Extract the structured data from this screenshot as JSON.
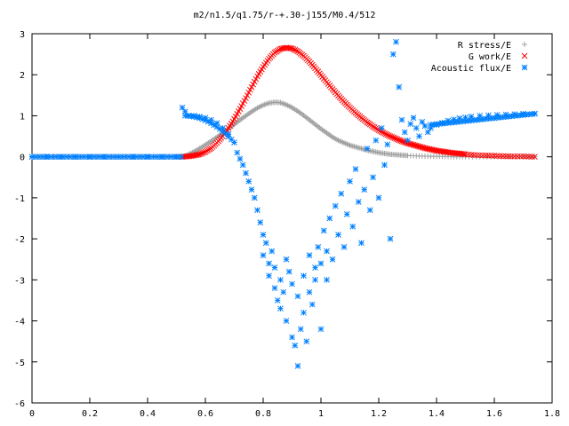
{
  "chart_data": {
    "type": "scatter",
    "title": "m2/n1.5/q1.75/r-+.30-j155/M0.4/512",
    "xlabel": "",
    "ylabel": "",
    "xlim": [
      0,
      1.8
    ],
    "ylim": [
      -6,
      3
    ],
    "xticks": [
      "0",
      "0.2",
      "0.4",
      "0.6",
      "0.8",
      "1",
      "1.2",
      "1.4",
      "1.6",
      "1.8"
    ],
    "yticks": [
      "3",
      "2",
      "1",
      "0",
      "-1",
      "-2",
      "-3",
      "-4",
      "-5",
      "-6"
    ],
    "grid": false,
    "legend_position": "top-right",
    "series": [
      {
        "name": "R stress/E",
        "marker": "plus",
        "color": "#a0a0a0",
        "x": [
          0.0,
          0.1,
          0.2,
          0.3,
          0.4,
          0.5,
          0.52,
          0.54,
          0.56,
          0.58,
          0.6,
          0.62,
          0.64,
          0.66,
          0.68,
          0.7,
          0.72,
          0.74,
          0.76,
          0.78,
          0.8,
          0.82,
          0.84,
          0.86,
          0.88,
          0.9,
          0.92,
          0.94,
          0.96,
          0.98,
          1.0,
          1.02,
          1.04,
          1.06,
          1.08,
          1.1,
          1.12,
          1.14,
          1.16,
          1.18,
          1.2,
          1.22,
          1.24,
          1.26,
          1.28,
          1.3,
          1.34,
          1.38,
          1.42,
          1.46,
          1.5,
          1.55,
          1.6,
          1.65,
          1.7,
          1.74
        ],
        "y": [
          0,
          0,
          0,
          0,
          0,
          0,
          0.0,
          0.05,
          0.12,
          0.2,
          0.29,
          0.38,
          0.48,
          0.58,
          0.68,
          0.79,
          0.9,
          1.0,
          1.1,
          1.19,
          1.26,
          1.31,
          1.33,
          1.32,
          1.27,
          1.2,
          1.11,
          1.01,
          0.9,
          0.79,
          0.68,
          0.58,
          0.48,
          0.4,
          0.34,
          0.28,
          0.24,
          0.2,
          0.16,
          0.13,
          0.1,
          0.08,
          0.06,
          0.05,
          0.04,
          0.03,
          0.02,
          0.01,
          0.01,
          0.0,
          0.0,
          0.0,
          0.0,
          0.0,
          0.0,
          0.0
        ]
      },
      {
        "name": "G work/E",
        "marker": "cross",
        "color": "#ff0000",
        "x": [
          0.52,
          0.54,
          0.56,
          0.58,
          0.6,
          0.62,
          0.64,
          0.66,
          0.68,
          0.7,
          0.72,
          0.74,
          0.76,
          0.78,
          0.8,
          0.82,
          0.84,
          0.86,
          0.88,
          0.9,
          0.92,
          0.94,
          0.96,
          0.98,
          1.0,
          1.02,
          1.04,
          1.06,
          1.08,
          1.1,
          1.12,
          1.14,
          1.16,
          1.18,
          1.2,
          1.22,
          1.24,
          1.26,
          1.28,
          1.3,
          1.32,
          1.34,
          1.36,
          1.38,
          1.4,
          1.42,
          1.44,
          1.46,
          1.48,
          1.5,
          1.54,
          1.58,
          1.62,
          1.66,
          1.7,
          1.74
        ],
        "y": [
          0.0,
          0.01,
          0.03,
          0.06,
          0.12,
          0.21,
          0.34,
          0.5,
          0.7,
          0.92,
          1.17,
          1.43,
          1.7,
          1.96,
          2.19,
          2.39,
          2.54,
          2.63,
          2.66,
          2.64,
          2.57,
          2.46,
          2.32,
          2.16,
          1.99,
          1.82,
          1.65,
          1.49,
          1.34,
          1.2,
          1.07,
          0.95,
          0.84,
          0.74,
          0.65,
          0.57,
          0.5,
          0.44,
          0.38,
          0.33,
          0.29,
          0.25,
          0.21,
          0.18,
          0.15,
          0.13,
          0.11,
          0.09,
          0.08,
          0.06,
          0.04,
          0.03,
          0.02,
          0.01,
          0.01,
          0.0
        ]
      },
      {
        "name": "Acoustic flux/E",
        "marker": "star",
        "color": "#0080ff",
        "x": [
          0.0,
          0.05,
          0.1,
          0.15,
          0.2,
          0.25,
          0.3,
          0.35,
          0.4,
          0.45,
          0.5,
          0.52,
          0.53,
          0.54,
          0.56,
          0.58,
          0.6,
          0.62,
          0.64,
          0.66,
          0.68,
          0.7,
          0.71,
          0.72,
          0.73,
          0.74,
          0.75,
          0.76,
          0.77,
          0.78,
          0.79,
          0.8,
          0.8,
          0.81,
          0.82,
          0.82,
          0.83,
          0.84,
          0.84,
          0.85,
          0.86,
          0.86,
          0.87,
          0.88,
          0.88,
          0.89,
          0.9,
          0.9,
          0.91,
          0.92,
          0.92,
          0.93,
          0.94,
          0.94,
          0.95,
          0.96,
          0.96,
          0.97,
          0.98,
          0.98,
          0.99,
          1.0,
          1.0,
          1.01,
          1.02,
          1.02,
          1.03,
          1.04,
          1.05,
          1.06,
          1.07,
          1.08,
          1.09,
          1.1,
          1.11,
          1.12,
          1.13,
          1.14,
          1.15,
          1.16,
          1.17,
          1.18,
          1.19,
          1.2,
          1.21,
          1.22,
          1.23,
          1.24,
          1.25,
          1.26,
          1.27,
          1.28,
          1.29,
          1.3,
          1.31,
          1.32,
          1.33,
          1.34,
          1.35,
          1.36,
          1.37,
          1.38,
          1.4,
          1.42,
          1.44,
          1.46,
          1.48,
          1.5,
          1.52,
          1.55,
          1.58,
          1.61,
          1.64,
          1.67,
          1.7,
          1.74
        ],
        "y": [
          0,
          0,
          0,
          0,
          0,
          0,
          0,
          0,
          0,
          0,
          0,
          1.2,
          1.1,
          1.0,
          1.0,
          0.98,
          0.95,
          0.9,
          0.82,
          0.7,
          0.55,
          0.35,
          0.1,
          -0.05,
          -0.2,
          -0.4,
          -0.6,
          -0.8,
          -1.0,
          -1.3,
          -1.6,
          -1.9,
          -2.4,
          -2.1,
          -2.6,
          -2.9,
          -2.3,
          -3.2,
          -2.7,
          -3.5,
          -3.0,
          -3.7,
          -3.3,
          -4.0,
          -2.5,
          -2.8,
          -4.4,
          -3.1,
          -4.6,
          -5.1,
          -3.4,
          -4.2,
          -3.8,
          -2.9,
          -4.5,
          -3.3,
          -2.4,
          -3.6,
          -3.0,
          -2.7,
          -2.2,
          -4.2,
          -2.6,
          -1.8,
          -3.0,
          -2.3,
          -1.5,
          -2.5,
          -1.2,
          -1.9,
          -0.9,
          -2.2,
          -1.4,
          -0.6,
          -1.7,
          -0.3,
          -1.1,
          -2.1,
          -0.8,
          0.2,
          -1.3,
          -0.5,
          0.4,
          -1.0,
          0.7,
          -0.2,
          0.3,
          -2.0,
          2.5,
          2.8,
          1.7,
          0.9,
          0.6,
          0.4,
          0.8,
          0.95,
          0.7,
          0.5,
          0.85,
          0.75,
          0.6,
          0.7,
          0.78,
          0.83,
          0.88,
          0.91,
          0.94,
          0.96,
          0.98,
          1.0,
          1.01,
          1.02,
          1.03,
          1.04,
          1.05,
          1.05
        ]
      }
    ]
  }
}
